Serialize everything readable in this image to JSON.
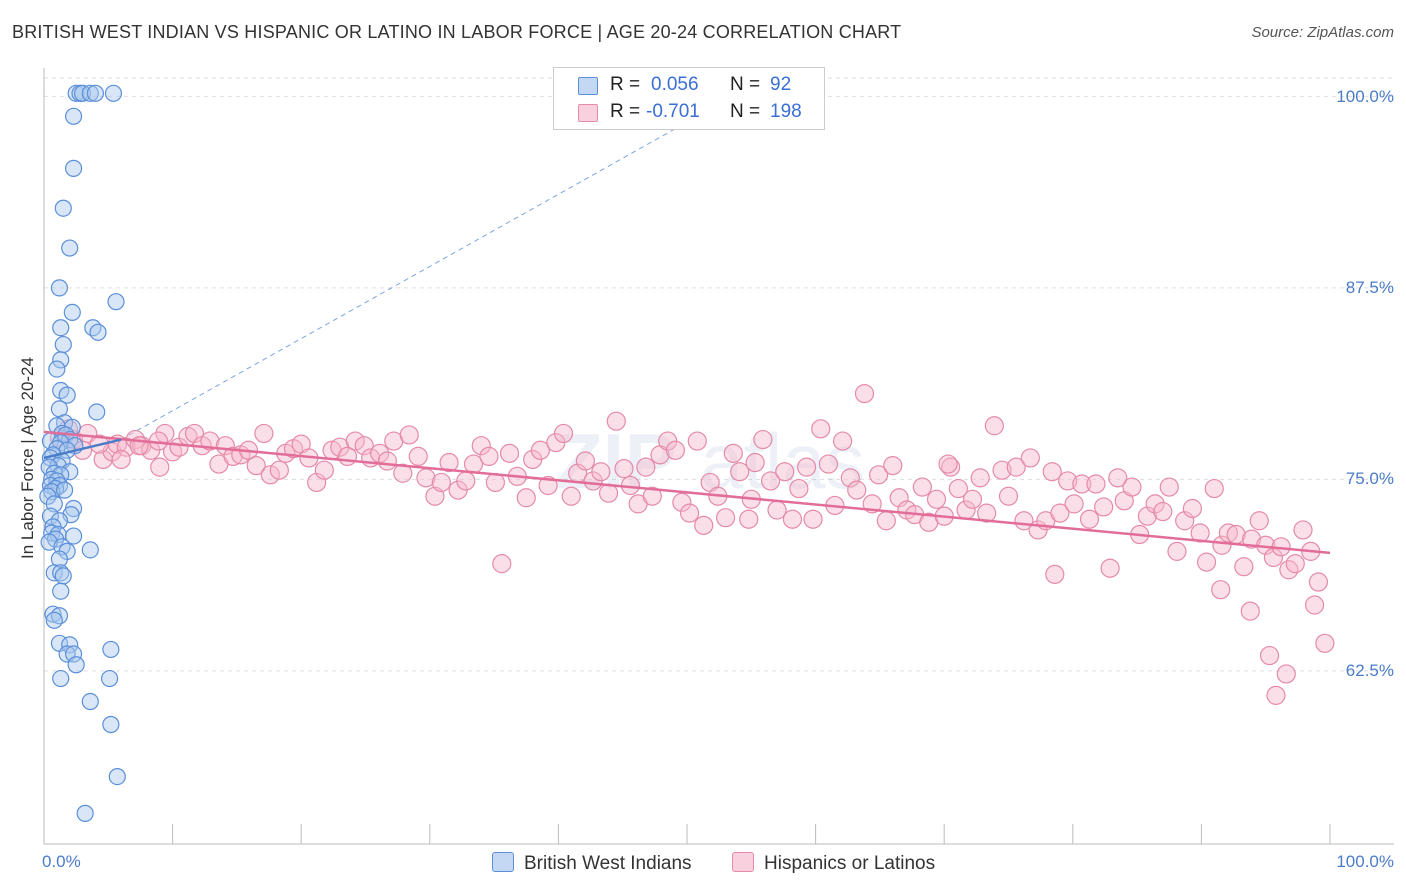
{
  "header": {
    "title": "BRITISH WEST INDIAN VS HISPANIC OR LATINO IN LABOR FORCE | AGE 20-24 CORRELATION CHART",
    "source": "Source: ZipAtlas.com"
  },
  "legend_stats": {
    "r_label": "R =",
    "n_label": "N =",
    "rows": [
      {
        "r": "0.056",
        "n": "92"
      },
      {
        "r": "-0.701",
        "n": "198"
      }
    ]
  },
  "colors": {
    "blue_fill": "#a9c7ee",
    "blue_stroke": "#5b8fd9",
    "blue_line": "#4a7cc9",
    "pink_fill": "#f6b8cc",
    "pink_stroke": "#e58aa8",
    "pink_line": "#e26d98",
    "accent_text": "#3a6fd6",
    "grid": "#dddddd"
  },
  "chart_data": {
    "type": "scatter",
    "title": "BRITISH WEST INDIAN VS HISPANIC OR LATINO IN LABOR FORCE | AGE 20-24 CORRELATION CHART",
    "xlabel": "",
    "ylabel": "In Labor Force | Age 20-24",
    "xlim": [
      0,
      100
    ],
    "ylim": [
      51.2,
      101.2
    ],
    "x_tick_labels": [
      "0.0%",
      "100.0%"
    ],
    "y_ticks": [
      62.5,
      75.0,
      87.5,
      100.0
    ],
    "y_tick_labels": [
      "62.5%",
      "75.0%",
      "87.5%",
      "100.0%"
    ],
    "grid": true,
    "legend": "bottom",
    "series": [
      {
        "name": "British West Indians",
        "r": 0.056,
        "n": 92,
        "trend": {
          "x": [
            0.0,
            6.0
          ],
          "y": [
            76.4,
            77.6
          ]
        },
        "trend_extension": {
          "x": [
            6.0,
            54.0
          ],
          "y": [
            77.6,
            100.2
          ]
        },
        "points": [
          [
            2.5,
            100.2
          ],
          [
            2.8,
            100.2
          ],
          [
            3.0,
            100.2
          ],
          [
            3.6,
            100.2
          ],
          [
            4.0,
            100.2
          ],
          [
            5.4,
            100.2
          ],
          [
            2.3,
            98.7
          ],
          [
            2.3,
            95.3
          ],
          [
            1.5,
            92.7
          ],
          [
            2.0,
            90.1
          ],
          [
            1.2,
            87.5
          ],
          [
            5.6,
            86.6
          ],
          [
            2.2,
            85.9
          ],
          [
            1.3,
            84.9
          ],
          [
            3.8,
            84.9
          ],
          [
            4.2,
            84.6
          ],
          [
            1.5,
            83.8
          ],
          [
            1.3,
            82.8
          ],
          [
            1.0,
            82.2
          ],
          [
            1.3,
            80.8
          ],
          [
            1.8,
            80.5
          ],
          [
            1.2,
            79.6
          ],
          [
            4.1,
            79.4
          ],
          [
            1.6,
            78.7
          ],
          [
            1.0,
            78.5
          ],
          [
            2.2,
            78.4
          ],
          [
            1.4,
            78.0
          ],
          [
            1.7,
            77.9
          ],
          [
            2.0,
            77.6
          ],
          [
            0.5,
            77.5
          ],
          [
            1.3,
            77.4
          ],
          [
            2.4,
            77.2
          ],
          [
            1.0,
            77.0
          ],
          [
            1.8,
            76.9
          ],
          [
            0.7,
            76.6
          ],
          [
            0.5,
            76.4
          ],
          [
            1.4,
            76.2
          ],
          [
            1.1,
            75.9
          ],
          [
            0.4,
            75.8
          ],
          [
            2.0,
            75.5
          ],
          [
            0.8,
            75.4
          ],
          [
            1.3,
            75.3
          ],
          [
            0.6,
            75.0
          ],
          [
            1.0,
            74.9
          ],
          [
            0.5,
            74.6
          ],
          [
            1.2,
            74.6
          ],
          [
            0.9,
            74.4
          ],
          [
            0.6,
            74.2
          ],
          [
            1.6,
            74.3
          ],
          [
            0.3,
            73.9
          ],
          [
            0.8,
            73.4
          ],
          [
            2.3,
            73.1
          ],
          [
            2.1,
            72.7
          ],
          [
            0.5,
            72.6
          ],
          [
            1.2,
            72.3
          ],
          [
            0.7,
            71.9
          ],
          [
            0.6,
            71.5
          ],
          [
            1.1,
            71.4
          ],
          [
            2.3,
            71.3
          ],
          [
            0.9,
            71.1
          ],
          [
            0.4,
            70.9
          ],
          [
            1.4,
            70.6
          ],
          [
            3.6,
            70.4
          ],
          [
            1.8,
            70.3
          ],
          [
            1.2,
            69.8
          ],
          [
            0.8,
            68.9
          ],
          [
            1.3,
            68.9
          ],
          [
            1.5,
            68.7
          ],
          [
            1.3,
            67.7
          ],
          [
            0.7,
            66.2
          ],
          [
            1.2,
            66.1
          ],
          [
            0.8,
            65.8
          ],
          [
            1.2,
            64.3
          ],
          [
            2.0,
            64.2
          ],
          [
            5.2,
            63.9
          ],
          [
            1.8,
            63.6
          ],
          [
            2.3,
            63.6
          ],
          [
            2.5,
            62.9
          ],
          [
            1.3,
            62.0
          ],
          [
            5.1,
            62.0
          ],
          [
            3.6,
            60.5
          ],
          [
            5.2,
            59.0
          ],
          [
            5.7,
            55.6
          ],
          [
            3.2,
            53.2
          ]
        ]
      },
      {
        "name": "Hispanics or Latinos",
        "r": -0.701,
        "n": 198,
        "trend": {
          "x": [
            0.0,
            100.0
          ],
          "y": [
            78.1,
            70.2
          ]
        },
        "points": [
          [
            2.3,
            77.6
          ],
          [
            3.4,
            78.0
          ],
          [
            4.6,
            76.3
          ],
          [
            5.3,
            76.8
          ],
          [
            5.7,
            77.3
          ],
          [
            6.4,
            77.1
          ],
          [
            7.1,
            77.6
          ],
          [
            7.6,
            77.2
          ],
          [
            8.3,
            76.9
          ],
          [
            9.0,
            75.8
          ],
          [
            9.4,
            78.0
          ],
          [
            10.0,
            76.8
          ],
          [
            10.5,
            77.1
          ],
          [
            11.2,
            77.8
          ],
          [
            11.7,
            78.0
          ],
          [
            12.3,
            77.2
          ],
          [
            12.9,
            77.5
          ],
          [
            13.6,
            76.0
          ],
          [
            14.1,
            77.2
          ],
          [
            14.7,
            76.5
          ],
          [
            15.3,
            76.6
          ],
          [
            15.9,
            76.9
          ],
          [
            16.5,
            75.9
          ],
          [
            17.1,
            78.0
          ],
          [
            17.6,
            75.3
          ],
          [
            18.3,
            75.6
          ],
          [
            18.8,
            76.7
          ],
          [
            19.4,
            77.0
          ],
          [
            20.0,
            77.3
          ],
          [
            20.6,
            76.4
          ],
          [
            21.2,
            74.8
          ],
          [
            21.8,
            75.6
          ],
          [
            22.4,
            76.9
          ],
          [
            23.0,
            77.1
          ],
          [
            23.6,
            76.5
          ],
          [
            24.2,
            77.5
          ],
          [
            24.9,
            77.2
          ],
          [
            25.4,
            76.4
          ],
          [
            26.1,
            76.7
          ],
          [
            26.7,
            76.2
          ],
          [
            27.2,
            77.5
          ],
          [
            27.9,
            75.4
          ],
          [
            28.4,
            77.9
          ],
          [
            29.1,
            76.5
          ],
          [
            29.7,
            75.1
          ],
          [
            30.4,
            73.9
          ],
          [
            30.9,
            74.8
          ],
          [
            31.5,
            76.1
          ],
          [
            32.2,
            74.3
          ],
          [
            32.8,
            74.9
          ],
          [
            33.4,
            76.0
          ],
          [
            34.0,
            77.2
          ],
          [
            34.6,
            76.5
          ],
          [
            35.1,
            74.8
          ],
          [
            35.6,
            69.5
          ],
          [
            36.2,
            76.7
          ],
          [
            36.8,
            75.2
          ],
          [
            37.5,
            73.8
          ],
          [
            38.0,
            76.3
          ],
          [
            38.6,
            76.9
          ],
          [
            39.2,
            74.6
          ],
          [
            39.8,
            77.4
          ],
          [
            40.4,
            78.0
          ],
          [
            41.0,
            73.9
          ],
          [
            41.5,
            75.4
          ],
          [
            42.1,
            76.2
          ],
          [
            42.7,
            74.9
          ],
          [
            43.3,
            75.5
          ],
          [
            43.9,
            74.1
          ],
          [
            44.5,
            78.8
          ],
          [
            45.1,
            75.7
          ],
          [
            45.6,
            74.6
          ],
          [
            46.2,
            73.4
          ],
          [
            46.8,
            75.8
          ],
          [
            47.3,
            73.9
          ],
          [
            47.9,
            76.6
          ],
          [
            48.5,
            77.5
          ],
          [
            49.1,
            76.9
          ],
          [
            49.6,
            73.5
          ],
          [
            50.2,
            72.8
          ],
          [
            50.8,
            77.5
          ],
          [
            51.3,
            72.0
          ],
          [
            51.8,
            74.8
          ],
          [
            52.4,
            73.9
          ],
          [
            53.0,
            72.5
          ],
          [
            53.6,
            76.7
          ],
          [
            54.1,
            75.5
          ],
          [
            54.8,
            72.4
          ],
          [
            55.3,
            76.1
          ],
          [
            55.9,
            77.6
          ],
          [
            56.5,
            74.9
          ],
          [
            57.0,
            73.0
          ],
          [
            57.6,
            75.5
          ],
          [
            58.2,
            72.4
          ],
          [
            58.7,
            74.4
          ],
          [
            59.3,
            75.8
          ],
          [
            59.8,
            72.4
          ],
          [
            60.4,
            78.3
          ],
          [
            61.0,
            76.0
          ],
          [
            61.5,
            73.3
          ],
          [
            62.1,
            77.5
          ],
          [
            62.7,
            75.1
          ],
          [
            63.2,
            74.3
          ],
          [
            63.8,
            80.6
          ],
          [
            64.4,
            73.4
          ],
          [
            64.9,
            75.3
          ],
          [
            65.5,
            72.3
          ],
          [
            66.0,
            75.9
          ],
          [
            66.5,
            73.8
          ],
          [
            67.1,
            73.0
          ],
          [
            67.7,
            72.7
          ],
          [
            68.3,
            74.5
          ],
          [
            68.8,
            72.2
          ],
          [
            69.4,
            73.7
          ],
          [
            70.0,
            72.6
          ],
          [
            70.5,
            75.8
          ],
          [
            71.1,
            74.4
          ],
          [
            71.7,
            73.0
          ],
          [
            72.2,
            73.7
          ],
          [
            72.8,
            75.1
          ],
          [
            73.3,
            72.8
          ],
          [
            73.9,
            78.5
          ],
          [
            74.5,
            75.6
          ],
          [
            75.0,
            73.9
          ],
          [
            75.6,
            75.8
          ],
          [
            76.2,
            72.3
          ],
          [
            76.7,
            76.4
          ],
          [
            77.3,
            71.7
          ],
          [
            77.9,
            72.3
          ],
          [
            78.4,
            75.5
          ],
          [
            79.0,
            72.8
          ],
          [
            79.6,
            74.9
          ],
          [
            80.1,
            73.4
          ],
          [
            80.7,
            74.7
          ],
          [
            81.3,
            72.4
          ],
          [
            81.8,
            74.7
          ],
          [
            82.4,
            73.2
          ],
          [
            82.9,
            69.2
          ],
          [
            83.5,
            75.1
          ],
          [
            84.0,
            73.6
          ],
          [
            84.6,
            74.5
          ],
          [
            85.2,
            71.4
          ],
          [
            85.8,
            72.6
          ],
          [
            86.4,
            73.4
          ],
          [
            87.0,
            72.9
          ],
          [
            87.5,
            74.5
          ],
          [
            88.1,
            70.3
          ],
          [
            88.7,
            72.3
          ],
          [
            89.3,
            73.1
          ],
          [
            89.9,
            71.5
          ],
          [
            90.4,
            69.6
          ],
          [
            91.0,
            74.4
          ],
          [
            91.6,
            70.7
          ],
          [
            92.1,
            71.5
          ],
          [
            92.7,
            71.4
          ],
          [
            93.3,
            69.3
          ],
          [
            93.9,
            71.1
          ],
          [
            94.5,
            72.3
          ],
          [
            95.0,
            70.7
          ],
          [
            95.6,
            69.9
          ],
          [
            96.2,
            70.6
          ],
          [
            96.8,
            69.1
          ],
          [
            97.3,
            69.5
          ],
          [
            97.9,
            71.7
          ],
          [
            98.5,
            70.3
          ],
          [
            99.1,
            68.3
          ],
          [
            99.6,
            64.3
          ],
          [
            70.3,
            76.0
          ],
          [
            55.0,
            73.7
          ],
          [
            78.6,
            68.8
          ],
          [
            91.5,
            67.8
          ],
          [
            93.8,
            66.4
          ],
          [
            1.2,
            77.7
          ],
          [
            1.9,
            78.3
          ],
          [
            3.0,
            76.9
          ],
          [
            4.3,
            77.3
          ],
          [
            6.0,
            76.3
          ],
          [
            7.4,
            77.2
          ],
          [
            8.9,
            77.5
          ],
          [
            96.6,
            62.3
          ],
          [
            98.8,
            66.8
          ],
          [
            95.3,
            63.5
          ],
          [
            95.8,
            60.9
          ]
        ]
      }
    ]
  }
}
